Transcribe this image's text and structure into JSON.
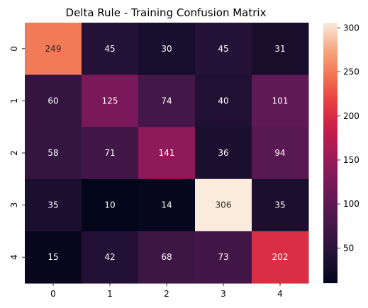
{
  "chart_data": {
    "type": "heatmap",
    "title": "Delta Rule - Training Confusion Matrix",
    "xlabel": "",
    "ylabel": "",
    "x_labels": [
      "0",
      "1",
      "2",
      "3",
      "4"
    ],
    "y_labels": [
      "0",
      "1",
      "2",
      "3",
      "4"
    ],
    "values": [
      [
        249,
        45,
        30,
        45,
        31
      ],
      [
        60,
        125,
        74,
        40,
        101
      ],
      [
        58,
        71,
        141,
        36,
        94
      ],
      [
        35,
        10,
        14,
        306,
        35
      ],
      [
        15,
        42,
        68,
        73,
        202
      ]
    ],
    "colorbar": {
      "min": 10,
      "max": 306,
      "ticks": [
        "50",
        "100",
        "150",
        "200",
        "250",
        "300"
      ],
      "colormap": "rocket"
    },
    "grid": false,
    "legend": "colorbar-right"
  }
}
